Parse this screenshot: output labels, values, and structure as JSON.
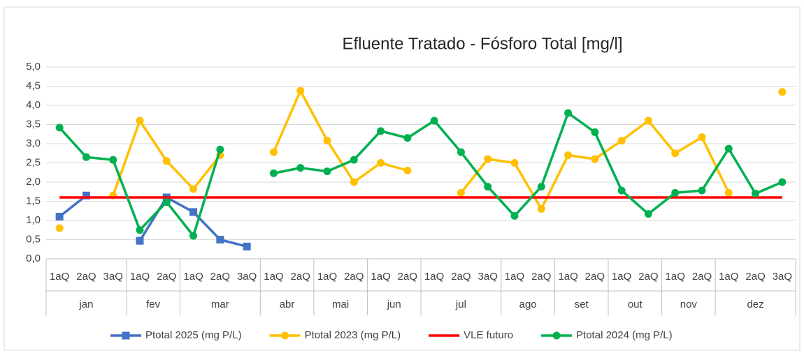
{
  "chart_data": {
    "type": "line",
    "title": "Efluente Tratado - Fósforo Total [mg/l]",
    "categories": [
      "1aQ",
      "2aQ",
      "3aQ",
      "1aQ",
      "2aQ",
      "1aQ",
      "2aQ",
      "3aQ",
      "1aQ",
      "2aQ",
      "1aQ",
      "2aQ",
      "1aQ",
      "2aQ",
      "1aQ",
      "2aQ",
      "3aQ",
      "1aQ",
      "2aQ",
      "1aQ",
      "2aQ",
      "1aQ",
      "2aQ",
      "1aQ",
      "2aQ",
      "1aQ",
      "2aQ",
      "3aQ"
    ],
    "category_groups": [
      {
        "label": "jan",
        "span": 3
      },
      {
        "label": "fev",
        "span": 2
      },
      {
        "label": "mar",
        "span": 3
      },
      {
        "label": "abr",
        "span": 2
      },
      {
        "label": "mai",
        "span": 2
      },
      {
        "label": "jun",
        "span": 2
      },
      {
        "label": "jul",
        "span": 3
      },
      {
        "label": "ago",
        "span": 2
      },
      {
        "label": "set",
        "span": 2
      },
      {
        "label": "out",
        "span": 2
      },
      {
        "label": "nov",
        "span": 2
      },
      {
        "label": "dez",
        "span": 3
      }
    ],
    "series": [
      {
        "name": "Ptotal 2025 (mg P/L)",
        "color": "#4472c4",
        "marker": "square",
        "values": [
          1.1,
          1.65,
          null,
          0.47,
          1.6,
          1.22,
          0.5,
          0.32,
          null,
          null,
          null,
          null,
          null,
          null,
          null,
          null,
          null,
          null,
          null,
          null,
          null,
          null,
          null,
          null,
          null,
          null,
          null,
          null
        ]
      },
      {
        "name": "Ptotal 2023 (mg P/L)",
        "color": "#ffc000",
        "marker": "circle",
        "values": [
          0.8,
          null,
          1.65,
          3.6,
          2.55,
          1.82,
          2.7,
          null,
          2.78,
          4.38,
          3.08,
          2.0,
          2.5,
          2.3,
          null,
          1.72,
          2.6,
          2.5,
          1.3,
          2.7,
          2.6,
          3.08,
          3.6,
          2.75,
          3.17,
          1.72,
          null,
          4.35
        ]
      },
      {
        "name": "VLE futuro",
        "color": "#ff0000",
        "marker": "none",
        "values": [
          1.6,
          1.6,
          1.6,
          1.6,
          1.6,
          1.6,
          1.6,
          1.6,
          1.6,
          1.6,
          1.6,
          1.6,
          1.6,
          1.6,
          1.6,
          1.6,
          1.6,
          1.6,
          1.6,
          1.6,
          1.6,
          1.6,
          1.6,
          1.6,
          1.6,
          1.6,
          1.6,
          1.6
        ]
      },
      {
        "name": "Ptotal 2024 (mg P/L)",
        "color": "#00b050",
        "marker": "circle",
        "values": [
          3.42,
          2.65,
          2.58,
          0.75,
          1.48,
          0.6,
          2.85,
          null,
          2.23,
          2.37,
          2.28,
          2.58,
          3.33,
          3.15,
          3.6,
          2.78,
          1.88,
          1.12,
          1.88,
          3.8,
          3.3,
          1.78,
          1.17,
          1.72,
          1.78,
          2.87,
          1.7,
          2.0
        ]
      }
    ],
    "ylim": [
      0,
      5
    ],
    "yticks": [
      {
        "value": 0,
        "label": "0,0"
      },
      {
        "value": 0.5,
        "label": "0,5"
      },
      {
        "value": 1,
        "label": "1,0"
      },
      {
        "value": 1.5,
        "label": "1,5"
      },
      {
        "value": 2,
        "label": "2,0"
      },
      {
        "value": 2.5,
        "label": "2,5"
      },
      {
        "value": 3,
        "label": "3,0"
      },
      {
        "value": 3.5,
        "label": "3,5"
      },
      {
        "value": 4,
        "label": "4,0"
      },
      {
        "value": 4.5,
        "label": "4,5"
      },
      {
        "value": 5,
        "label": "5,0"
      }
    ],
    "grid": true,
    "legend": "bottom"
  }
}
